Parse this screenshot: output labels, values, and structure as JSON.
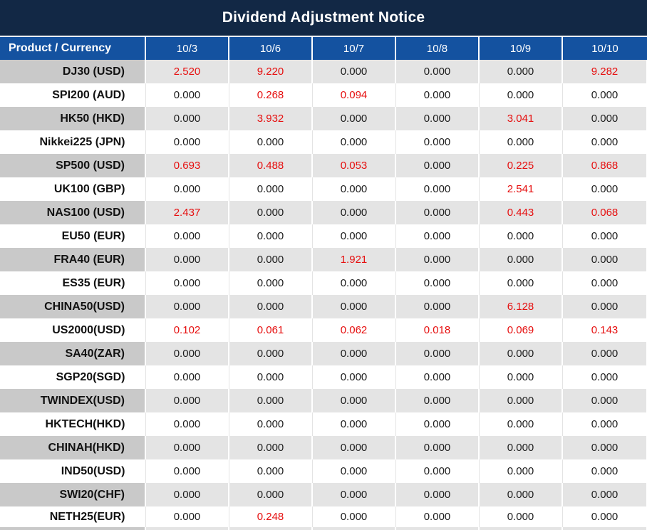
{
  "title": "Dividend Adjustment Notice",
  "header": {
    "product_label": "Product / Currency",
    "dates": [
      "10/3",
      "10/6",
      "10/7",
      "10/8",
      "10/9",
      "10/10"
    ]
  },
  "rows": [
    {
      "label": "DJ30 (USD)",
      "values": [
        "2.520",
        "9.220",
        "0.000",
        "0.000",
        "0.000",
        "9.282"
      ]
    },
    {
      "label": "SPI200 (AUD)",
      "values": [
        "0.000",
        "0.268",
        "0.094",
        "0.000",
        "0.000",
        "0.000"
      ]
    },
    {
      "label": "HK50 (HKD)",
      "values": [
        "0.000",
        "3.932",
        "0.000",
        "0.000",
        "3.041",
        "0.000"
      ]
    },
    {
      "label": "Nikkei225 (JPN)",
      "values": [
        "0.000",
        "0.000",
        "0.000",
        "0.000",
        "0.000",
        "0.000"
      ]
    },
    {
      "label": "SP500 (USD)",
      "values": [
        "0.693",
        "0.488",
        "0.053",
        "0.000",
        "0.225",
        "0.868"
      ]
    },
    {
      "label": "UK100 (GBP)",
      "values": [
        "0.000",
        "0.000",
        "0.000",
        "0.000",
        "2.541",
        "0.000"
      ]
    },
    {
      "label": "NAS100 (USD)",
      "values": [
        "2.437",
        "0.000",
        "0.000",
        "0.000",
        "0.443",
        "0.068"
      ]
    },
    {
      "label": "EU50 (EUR)",
      "values": [
        "0.000",
        "0.000",
        "0.000",
        "0.000",
        "0.000",
        "0.000"
      ]
    },
    {
      "label": "FRA40 (EUR)",
      "values": [
        "0.000",
        "0.000",
        "1.921",
        "0.000",
        "0.000",
        "0.000"
      ]
    },
    {
      "label": "ES35 (EUR)",
      "values": [
        "0.000",
        "0.000",
        "0.000",
        "0.000",
        "0.000",
        "0.000"
      ]
    },
    {
      "label": "CHINA50(USD)",
      "values": [
        "0.000",
        "0.000",
        "0.000",
        "0.000",
        "6.128",
        "0.000"
      ]
    },
    {
      "label": "US2000(USD)",
      "values": [
        "0.102",
        "0.061",
        "0.062",
        "0.018",
        "0.069",
        "0.143"
      ]
    },
    {
      "label": "SA40(ZAR)",
      "values": [
        "0.000",
        "0.000",
        "0.000",
        "0.000",
        "0.000",
        "0.000"
      ]
    },
    {
      "label": "SGP20(SGD)",
      "values": [
        "0.000",
        "0.000",
        "0.000",
        "0.000",
        "0.000",
        "0.000"
      ]
    },
    {
      "label": "TWINDEX(USD)",
      "values": [
        "0.000",
        "0.000",
        "0.000",
        "0.000",
        "0.000",
        "0.000"
      ]
    },
    {
      "label": "HKTECH(HKD)",
      "values": [
        "0.000",
        "0.000",
        "0.000",
        "0.000",
        "0.000",
        "0.000"
      ]
    },
    {
      "label": "CHINAH(HKD)",
      "values": [
        "0.000",
        "0.000",
        "0.000",
        "0.000",
        "0.000",
        "0.000"
      ]
    },
    {
      "label": "IND50(USD)",
      "values": [
        "0.000",
        "0.000",
        "0.000",
        "0.000",
        "0.000",
        "0.000"
      ]
    },
    {
      "label": "SWI20(CHF)",
      "values": [
        "0.000",
        "0.000",
        "0.000",
        "0.000",
        "0.000",
        "0.000"
      ]
    },
    {
      "label": "NETH25(EUR)",
      "values": [
        "0.000",
        "0.248",
        "0.000",
        "0.000",
        "0.000",
        "0.000"
      ]
    }
  ],
  "zero_value": "0.000",
  "colors": {
    "title_bg": "#122845",
    "header_bg": "#1452a0",
    "row_gray_label": "#c9c9c9",
    "row_gray_value": "#e4e4e4",
    "value_text": "#1c1c1c",
    "highlight_red": "#e60f0f"
  }
}
